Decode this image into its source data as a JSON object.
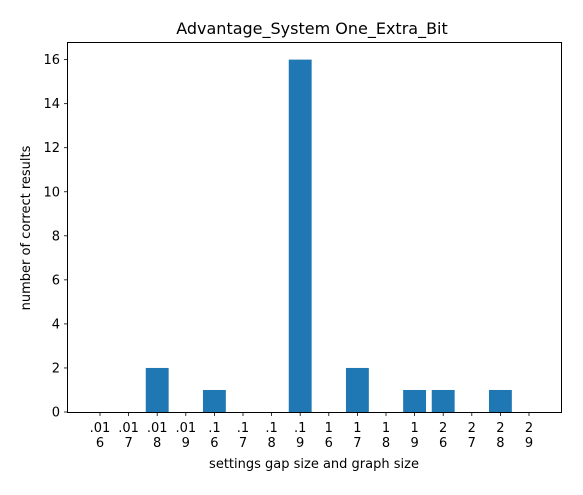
{
  "chart_data": {
    "type": "bar",
    "title": "Advantage_System One_Extra_Bit",
    "xlabel": "settings gap size and graph size",
    "ylabel": "number of correct results",
    "categories": [
      ".01\n6",
      ".01\n7",
      ".01\n8",
      ".01\n9",
      ".1\n6",
      ".1\n7",
      ".1\n8",
      ".1\n9",
      "1\n6",
      "1\n7",
      "1\n8",
      "1\n9",
      "2\n6",
      "2\n7",
      "2\n8",
      "2\n9"
    ],
    "values": [
      0,
      0,
      2,
      0,
      1,
      0,
      0,
      16,
      0,
      2,
      0,
      1,
      1,
      0,
      1,
      0
    ],
    "ylim": [
      0,
      16.8
    ],
    "yticks": [
      0,
      2,
      4,
      6,
      8,
      10,
      12,
      14,
      16
    ],
    "grid": false,
    "bar_color": "#1f77b4"
  }
}
